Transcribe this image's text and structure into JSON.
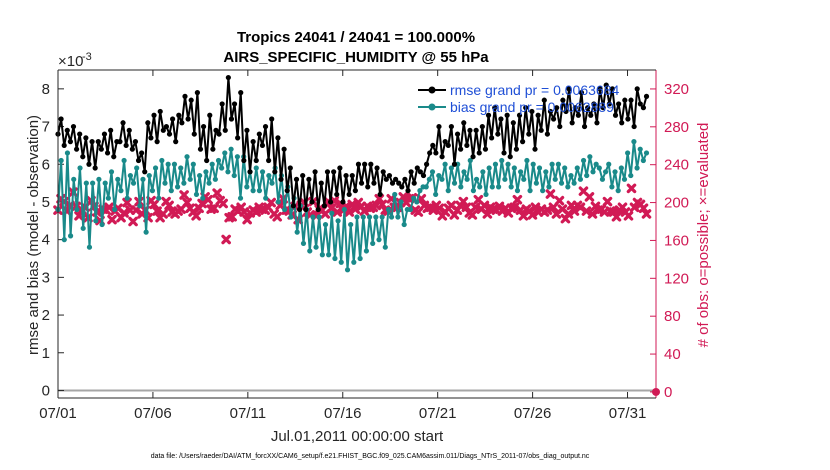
{
  "chart_data": {
    "type": "line",
    "title_line1": "Tropics 24041 / 24041 = 100.000%",
    "title_line2": "AIRS_SPECIFIC_HUMIDITY @ 55 hPa",
    "xlabel": "Jul.01,2011 00:00:00 start",
    "ylabel_left": "rmse and bias (model - observation)",
    "ylabel_right": "# of obs: o=possible; ×=evaluated",
    "y_exponent_label": "×10",
    "y_exponent_power": "-3",
    "footer": "data file: /Users/raeder/DAI/ATM_forcXX/CAM6_setup/f.e21.FHIST_BGC.f09_025.CAM6assim.011/Diags_NTrS_2011-07/obs_diag_output.nc",
    "x_ticks": [
      {
        "day": 0,
        "label": "07/01"
      },
      {
        "day": 5,
        "label": "07/06"
      },
      {
        "day": 10,
        "label": "07/11"
      },
      {
        "day": 15,
        "label": "07/16"
      },
      {
        "day": 20,
        "label": "07/21"
      },
      {
        "day": 25,
        "label": "07/26"
      },
      {
        "day": 30,
        "label": "07/31"
      }
    ],
    "y_left_ticks": [
      "0",
      "1",
      "2",
      "3",
      "4",
      "5",
      "6",
      "7",
      "8"
    ],
    "y_right_ticks": [
      "0",
      "40",
      "80",
      "120",
      "160",
      "200",
      "240",
      "280",
      "320"
    ],
    "xlim": [
      0,
      31.5
    ],
    "ylim_left": [
      -0.2,
      8.5
    ],
    "ylim_right": [
      -6.4,
      340
    ],
    "series": [
      {
        "name": "rmse",
        "legend": "rmse grand pr = 0.0063684",
        "color": "#000000",
        "values": [
          6.8,
          7.2,
          6.5,
          6.9,
          6.6,
          7.0,
          6.4,
          6.8,
          6.2,
          6.7,
          6.0,
          6.6,
          5.9,
          6.6,
          6.4,
          6.8,
          6.3,
          6.9,
          6.2,
          6.6,
          6.6,
          7.1,
          6.5,
          6.9,
          6.4,
          6.6,
          6.1,
          6.3,
          5.8,
          7.1,
          6.7,
          7.3,
          6.6,
          7.4,
          6.9,
          7.0,
          6.8,
          7.2,
          6.6,
          7.3,
          7.1,
          7.8,
          7.2,
          7.7,
          6.8,
          7.9,
          6.4,
          7.0,
          6.1,
          7.3,
          6.4,
          6.9,
          6.8,
          7.6,
          6.9,
          8.3,
          7.2,
          7.6,
          6.7,
          7.9,
          6.1,
          6.9,
          5.8,
          6.6,
          6.1,
          6.8,
          6.5,
          7.0,
          6.1,
          7.2,
          5.8,
          6.7,
          5.6,
          6.4,
          5.3,
          5.9,
          4.9,
          5.6,
          4.8,
          5.7,
          4.8,
          5.6,
          5.0,
          5.8,
          4.8,
          5.5,
          4.9,
          5.8,
          5.0,
          5.8,
          5.2,
          5.9,
          5.0,
          5.7,
          5.2,
          5.7,
          5.3,
          6.0,
          5.5,
          6.0,
          5.4,
          6.0,
          5.5,
          5.9,
          5.2,
          5.8,
          5.6,
          5.7,
          5.5,
          5.6,
          5.5,
          5.4,
          5.6,
          5.3,
          5.8,
          5.5,
          5.9,
          5.8,
          5.7,
          6.0,
          6.3,
          6.5,
          6.3,
          7.0,
          6.2,
          6.6,
          6.5,
          7.0,
          6.0,
          6.8,
          6.4,
          7.1,
          6.5,
          6.9,
          6.2,
          6.9,
          6.3,
          7.0,
          6.4,
          7.3,
          6.7,
          7.5,
          6.8,
          7.2,
          6.3,
          7.3,
          6.2,
          7.1,
          6.4,
          7.3,
          6.6,
          7.5,
          6.8,
          7.4,
          6.4,
          7.3,
          6.9,
          7.7,
          6.8,
          7.4,
          7.2,
          7.5,
          7.0,
          7.7,
          7.4,
          8.0,
          7.1,
          7.5,
          7.3,
          7.9,
          7.0,
          7.5,
          7.3,
          7.6,
          7.1,
          8.0,
          7.5,
          8.1,
          7.6,
          8.0,
          7.3,
          7.6,
          7.1,
          7.7,
          7.2,
          7.7,
          7.0,
          8.0,
          7.6,
          7.5,
          7.8
        ]
      },
      {
        "name": "bias",
        "legend": "bias grand pr = 0.0062889",
        "color": "#1a8a8a",
        "values": [
          4.8,
          6.1,
          4.0,
          6.3,
          4.1,
          5.6,
          4.8,
          5.9,
          4.3,
          5.5,
          3.8,
          5.5,
          4.5,
          5.6,
          4.4,
          5.5,
          5.1,
          5.8,
          4.8,
          5.6,
          5.3,
          6.1,
          5.1,
          5.7,
          5.5,
          5.9,
          4.9,
          5.6,
          4.2,
          5.7,
          5.3,
          5.9,
          5.1,
          6.1,
          5.5,
          6.0,
          5.3,
          6.0,
          5.4,
          5.9,
          5.5,
          6.2,
          5.6,
          6.0,
          5.2,
          5.7,
          5.1,
          5.8,
          5.5,
          6.0,
          5.6,
          6.1,
          5.9,
          6.3,
          5.8,
          6.4,
          5.7,
          6.2,
          5.1,
          6.2,
          5.4,
          5.8,
          5.3,
          5.9,
          5.3,
          5.8,
          5.1,
          5.7,
          5.5,
          5.9,
          5.0,
          5.7,
          4.8,
          5.4,
          4.6,
          5.1,
          4.2,
          4.9,
          3.9,
          4.8,
          3.7,
          4.6,
          3.8,
          4.6,
          3.6,
          4.4,
          3.6,
          4.7,
          3.5,
          4.5,
          3.4,
          4.8,
          3.2,
          4.4,
          3.4,
          4.6,
          3.5,
          4.6,
          3.7,
          4.6,
          3.9,
          4.6,
          4.0,
          4.6,
          3.8,
          4.8,
          4.6,
          5.2,
          4.6,
          5.0,
          4.4,
          4.8,
          4.8,
          5.1,
          5.0,
          5.3,
          5.4,
          5.4,
          5.6,
          5.8,
          5.2,
          5.7,
          5.6,
          6.0,
          5.3,
          5.9,
          5.5,
          6.0,
          5.4,
          5.8,
          5.6,
          6.1,
          5.3,
          5.6,
          5.4,
          5.8,
          5.2,
          5.9,
          5.4,
          6.0,
          5.4,
          6.1,
          5.6,
          6.0,
          5.4,
          5.9,
          5.3,
          5.8,
          5.6,
          6.1,
          5.3,
          6.0,
          5.5,
          5.9,
          5.3,
          5.8,
          5.4,
          6.0,
          5.6,
          6.0,
          5.5,
          5.9,
          5.4,
          5.7,
          5.5,
          5.9,
          5.6,
          6.1,
          5.7,
          6.2,
          5.8,
          6.0,
          5.9,
          5.6,
          5.8,
          6.0,
          5.4,
          5.8,
          5.3,
          5.9,
          5.6,
          6.3,
          5.7,
          6.6,
          5.9,
          6.4,
          6.1,
          6.3
        ]
      },
      {
        "name": "obs evaluated",
        "color": "#d11a55",
        "values": [
          192,
          204,
          201,
          191,
          197,
          211,
          196,
          186,
          192,
          195,
          184,
          202,
          196,
          190,
          181,
          193,
          192,
          195,
          182,
          191,
          194,
          184,
          189,
          200,
          192,
          180,
          192,
          201,
          188,
          192,
          184,
          202,
          198,
          191,
          184,
          188,
          201,
          197,
          190,
          188,
          191,
          193,
          208,
          200,
          194,
          190,
          186,
          194,
          199,
          206,
          203,
          193,
          194,
          210,
          202,
          199,
          161,
          184,
          185,
          193,
          191,
          195,
          190,
          182,
          189,
          192,
          190,
          195,
          193,
          192,
          195,
          200,
          188,
          185,
          197,
          204,
          192,
          191,
          187,
          196,
          182,
          197,
          200,
          190,
          187,
          201,
          186,
          193,
          192,
          188,
          201,
          194,
          202,
          190,
          199,
          192,
          196,
          190,
          198,
          193,
          200,
          196,
          191,
          196,
          194,
          195,
          197,
          204,
          198,
          192,
          191,
          204,
          195,
          195,
          200,
          206,
          200,
          204,
          205,
          192,
          190,
          204,
          197,
          194,
          195,
          192,
          197,
          194,
          186,
          190,
          194,
          197,
          187,
          192,
          197,
          201,
          195,
          189,
          187,
          195,
          203,
          193,
          197,
          188,
          195,
          193,
          192,
          196,
          191,
          194,
          189,
          194,
          195,
          203,
          192,
          186,
          193,
          191,
          187,
          195,
          190,
          193,
          190,
          192,
          209,
          195,
          188,
          202,
          193,
          183,
          188,
          197,
          191,
          197,
          195,
          212,
          191,
          206,
          188,
          196,
          192,
          193,
          190,
          201,
          191,
          190,
          185,
          192,
          195,
          190,
          186,
          215,
          195,
          200,
          198,
          194,
          188
        ]
      }
    ],
    "obs_possible_marker": {
      "day": 31.5,
      "value": 0
    }
  }
}
